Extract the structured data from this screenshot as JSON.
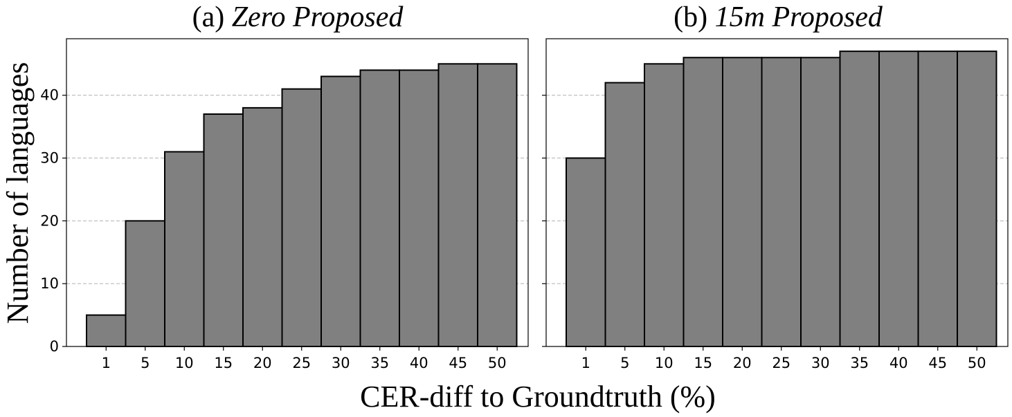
{
  "figure": {
    "ylabel": "Number of languages",
    "xlabel": "CER-diff to Groundtruth (%)"
  },
  "chart_data": [
    {
      "type": "bar",
      "title_prefix": "(a) ",
      "title_emph": "Zero Proposed",
      "categories": [
        "1",
        "5",
        "10",
        "15",
        "20",
        "25",
        "30",
        "35",
        "40",
        "45",
        "50"
      ],
      "values": [
        5,
        20,
        31,
        37,
        38,
        41,
        43,
        44,
        44,
        45,
        45
      ],
      "ylim": [
        0,
        49
      ],
      "yticks": [
        0,
        10,
        20,
        30,
        40
      ],
      "grid": "horizontal-dashed",
      "bar_color": "#808080",
      "edge_color": "#000000"
    },
    {
      "type": "bar",
      "title_prefix": "(b) ",
      "title_emph": "15m Proposed",
      "categories": [
        "1",
        "5",
        "10",
        "15",
        "20",
        "25",
        "30",
        "35",
        "40",
        "45",
        "50"
      ],
      "values": [
        30,
        42,
        45,
        46,
        46,
        46,
        46,
        47,
        47,
        47,
        47
      ],
      "ylim": [
        0,
        49
      ],
      "yticks": [
        0,
        10,
        20,
        30,
        40
      ],
      "grid": "horizontal-dashed",
      "bar_color": "#808080",
      "edge_color": "#000000"
    }
  ]
}
